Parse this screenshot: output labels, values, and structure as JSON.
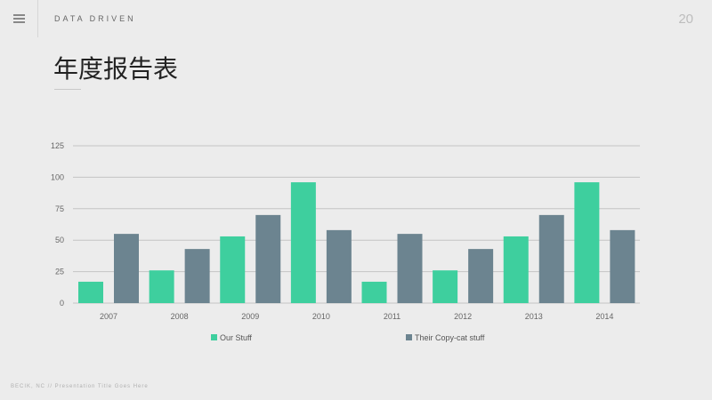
{
  "header": {
    "brand": "DATA DRIVEN",
    "page_number": "20",
    "title": "年度报告表"
  },
  "footer": {
    "text": "BECIK, NC // Presentation Title Goes Here"
  },
  "colors": {
    "series_1": "#3ecf9e",
    "series_2": "#6c8490",
    "grid": "#c4c4c4",
    "background": "#ececec"
  },
  "chart_data": {
    "type": "bar",
    "categories": [
      "2007",
      "2008",
      "2009",
      "2010",
      "2011",
      "2012",
      "2013",
      "2014"
    ],
    "series": [
      {
        "name": "Our Stuff",
        "values": [
          17,
          26,
          53,
          96,
          17,
          26,
          53,
          96
        ]
      },
      {
        "name": "Their Copy-cat stuff",
        "values": [
          55,
          43,
          70,
          58,
          55,
          43,
          70,
          58
        ]
      }
    ],
    "y_ticks": [
      "0",
      "25",
      "50",
      "75",
      "100",
      "125"
    ],
    "ylim": [
      0,
      125
    ],
    "grid": true,
    "legend_position": "bottom",
    "title": "",
    "xlabel": "",
    "ylabel": ""
  }
}
